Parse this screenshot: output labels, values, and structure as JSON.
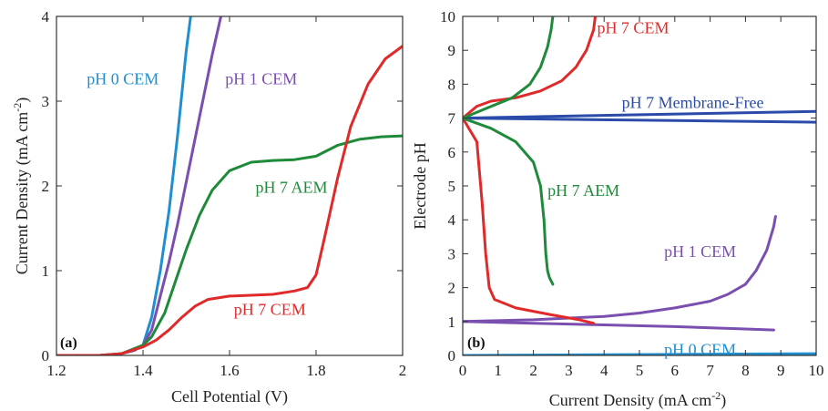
{
  "chart_data": [
    {
      "panel_label": "(a)",
      "type": "line",
      "xlabel": "Cell Potential (V)",
      "ylabel": "Current Density (mA cm",
      "ylabel_sup": "-2",
      "ylabel_end": ")",
      "xlim": [
        1.2,
        2.0
      ],
      "ylim": [
        0,
        4
      ],
      "xticks": [
        1.2,
        1.4,
        1.6,
        1.8,
        2
      ],
      "xtick_labels": [
        "1.2",
        "1.4",
        "1.6",
        "1.8",
        "2"
      ],
      "yticks": [
        0,
        1,
        2,
        3,
        4
      ],
      "ytick_labels": [
        "0",
        "1",
        "2",
        "3",
        "4"
      ],
      "series": [
        {
          "name": "pH 0 CEM",
          "color": "#1f8fd0",
          "x": [
            1.2,
            1.3,
            1.35,
            1.38,
            1.4,
            1.42,
            1.44,
            1.46,
            1.48,
            1.5,
            1.51
          ],
          "y": [
            0.0,
            0.0,
            0.02,
            0.06,
            0.12,
            0.45,
            1.0,
            1.7,
            2.6,
            3.6,
            4.0
          ]
        },
        {
          "name": "pH 1 CEM",
          "color": "#7a4fb0",
          "x": [
            1.2,
            1.3,
            1.35,
            1.38,
            1.4,
            1.42,
            1.44,
            1.46,
            1.48,
            1.5,
            1.52,
            1.54,
            1.56,
            1.58
          ],
          "y": [
            0.0,
            0.0,
            0.02,
            0.06,
            0.12,
            0.3,
            0.7,
            1.1,
            1.55,
            2.05,
            2.55,
            3.05,
            3.55,
            4.0
          ]
        },
        {
          "name": "pH 7 AEM",
          "color": "#1f8a3a",
          "x": [
            1.2,
            1.3,
            1.35,
            1.4,
            1.42,
            1.45,
            1.48,
            1.5,
            1.53,
            1.56,
            1.6,
            1.65,
            1.7,
            1.75,
            1.8,
            1.85,
            1.9,
            1.95,
            2.0
          ],
          "y": [
            0.0,
            0.0,
            0.02,
            0.12,
            0.22,
            0.5,
            0.95,
            1.25,
            1.65,
            1.95,
            2.18,
            2.28,
            2.3,
            2.31,
            2.35,
            2.48,
            2.55,
            2.58,
            2.59
          ]
        },
        {
          "name": "pH 7 CEM",
          "color": "#e02a2a",
          "x": [
            1.2,
            1.3,
            1.35,
            1.4,
            1.43,
            1.46,
            1.49,
            1.52,
            1.55,
            1.6,
            1.7,
            1.75,
            1.78,
            1.8,
            1.82,
            1.85,
            1.88,
            1.92,
            1.96,
            2.0
          ],
          "y": [
            0.0,
            0.0,
            0.02,
            0.1,
            0.18,
            0.3,
            0.45,
            0.58,
            0.66,
            0.7,
            0.72,
            0.76,
            0.8,
            0.95,
            1.4,
            2.1,
            2.7,
            3.2,
            3.5,
            3.65
          ]
        }
      ],
      "annotations": [
        {
          "text": "pH 0 CEM",
          "color": "#1f8fd0",
          "x": 1.27,
          "y": 3.2
        },
        {
          "text": "pH 1 CEM",
          "color": "#7a4fb0",
          "x": 1.59,
          "y": 3.2
        },
        {
          "text": "pH 7 AEM",
          "color": "#1f8a3a",
          "x": 1.66,
          "y": 1.92
        },
        {
          "text": "pH 7 CEM",
          "color": "#e02a2a",
          "x": 1.61,
          "y": 0.48
        }
      ]
    },
    {
      "panel_label": "(b)",
      "type": "line",
      "xlabel": "Current Density (mA cm",
      "xlabel_sup": "-2",
      "xlabel_end": ")",
      "ylabel": "Electrode pH",
      "xlim": [
        0,
        10
      ],
      "ylim": [
        0,
        10
      ],
      "xticks": [
        0,
        1,
        2,
        3,
        4,
        5,
        6,
        7,
        8,
        9,
        10
      ],
      "xtick_labels": [
        "0",
        "1",
        "2",
        "3",
        "4",
        "5",
        "6",
        "7",
        "8",
        "9",
        "10"
      ],
      "yticks": [
        0,
        1,
        2,
        3,
        4,
        5,
        6,
        7,
        8,
        9,
        10
      ],
      "ytick_labels": [
        "0",
        "1",
        "2",
        "3",
        "4",
        "5",
        "6",
        "7",
        "8",
        "9",
        "10"
      ],
      "series": [
        {
          "name": "pH 0 CEM",
          "color": "#1f8fd0",
          "x": [
            0,
            10
          ],
          "y": [
            0.0,
            0.05
          ]
        },
        {
          "name": "pH 1 CEM (upper)",
          "color": "#7a4fb0",
          "x": [
            0,
            2,
            4,
            5,
            6,
            7,
            7.5,
            8,
            8.3,
            8.6,
            8.8,
            8.85
          ],
          "y": [
            1.0,
            1.05,
            1.15,
            1.25,
            1.4,
            1.6,
            1.8,
            2.1,
            2.5,
            3.1,
            3.8,
            4.1
          ]
        },
        {
          "name": "pH 1 CEM (lower)",
          "color": "#7a4fb0",
          "x": [
            0,
            2,
            4,
            6,
            8,
            8.8
          ],
          "y": [
            1.0,
            0.95,
            0.9,
            0.85,
            0.78,
            0.75
          ]
        },
        {
          "name": "pH 7 Membrane-Free (upper)",
          "color": "#2b4ba8",
          "x": [
            0,
            10
          ],
          "y": [
            7.0,
            7.2
          ]
        },
        {
          "name": "pH 7 Membrane-Free (lower)",
          "color": "#2b4ba8",
          "x": [
            0,
            10
          ],
          "y": [
            7.0,
            6.88
          ]
        },
        {
          "name": "pH 7 CEM (upper)",
          "color": "#e02a2a",
          "x": [
            0,
            0.4,
            0.8,
            1.5,
            2.2,
            2.8,
            3.2,
            3.5,
            3.7,
            3.75
          ],
          "y": [
            7.0,
            7.35,
            7.5,
            7.6,
            7.8,
            8.1,
            8.5,
            9.0,
            9.6,
            10.0
          ]
        },
        {
          "name": "pH 7 CEM (lower)",
          "color": "#e02a2a",
          "x": [
            0,
            0.4,
            0.55,
            0.65,
            0.75,
            0.9,
            1.5,
            2.5,
            3.3,
            3.7
          ],
          "y": [
            7.0,
            6.3,
            4.5,
            3.0,
            2.0,
            1.65,
            1.4,
            1.2,
            1.05,
            0.95
          ]
        },
        {
          "name": "pH 7 AEM (upper)",
          "color": "#1f8a3a",
          "x": [
            0,
            0.7,
            1.4,
            1.9,
            2.2,
            2.4,
            2.5,
            2.55
          ],
          "y": [
            7.0,
            7.3,
            7.6,
            8.0,
            8.5,
            9.1,
            9.6,
            10.0
          ]
        },
        {
          "name": "pH 7 AEM (lower)",
          "color": "#1f8a3a",
          "x": [
            0,
            0.8,
            1.5,
            2.0,
            2.2,
            2.3,
            2.35,
            2.4,
            2.45,
            2.55
          ],
          "y": [
            7.0,
            6.7,
            6.3,
            5.7,
            5.0,
            4.0,
            3.0,
            2.5,
            2.3,
            2.1
          ]
        }
      ],
      "annotations": [
        {
          "text": "pH 7 CEM",
          "color": "#e02a2a",
          "x": 3.8,
          "y": 9.5
        },
        {
          "text": "pH 7 Membrane-Free",
          "color": "#2b4ba8",
          "x": 4.5,
          "y": 7.3
        },
        {
          "text": "pH 7 AEM",
          "color": "#1f8a3a",
          "x": 2.4,
          "y": 4.7
        },
        {
          "text": "pH 1 CEM",
          "color": "#7a4fb0",
          "x": 5.7,
          "y": 2.9
        },
        {
          "text": "pH 0 CEM",
          "color": "#1f8fd0",
          "x": 5.7,
          "y": 0.02
        }
      ]
    }
  ]
}
